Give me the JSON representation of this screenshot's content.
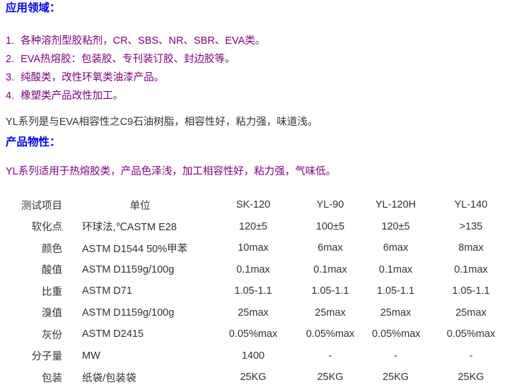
{
  "colors": {
    "heading_blue": "#0000ee",
    "list_purple": "#80007f",
    "body_text": "#333333",
    "background": "#ffffff"
  },
  "application": {
    "heading": "应用领域：",
    "items": [
      {
        "no": "1.",
        "text": "各种溶剂型胶粘剂，CR、SBS、NR、SBR、EVA类。"
      },
      {
        "no": "2.",
        "text": "EVA热熔胶：包装胶、专刊装订胶、封边胶等。"
      },
      {
        "no": "3.",
        "text": "纯酸类，改性环氧类油漆产品。"
      },
      {
        "no": "4.",
        "text": "橡塑类产品改性加工。"
      }
    ],
    "summary": "YL系列是与EVA相容性之C9石油树脂，相容性好，粘力强，味道浅。"
  },
  "properties": {
    "heading": "产品物性：",
    "summary": "YL系列适用于热熔胶类，产品色泽浅，加工相容性好，粘力强，气味低。"
  },
  "spec_table": {
    "headers": [
      "测试项目",
      "单位",
      "SK-120",
      "YL-90",
      "YL-120H",
      "YL-140"
    ],
    "rows": [
      [
        "软化点",
        "环球法,℃ASTM E28",
        "120±5",
        "100±5",
        "120±5",
        ">135"
      ],
      [
        "颜色",
        "ASTM D1544 50%甲苯",
        "10max",
        "6max",
        "6max",
        "8max"
      ],
      [
        "酸值",
        "ASTM D1159g/100g",
        "0.1max",
        "0.1max",
        "0.1max",
        "0.1max"
      ],
      [
        "比重",
        "ASTM D71",
        "1.05-1.1",
        "1.05-1.1",
        "1.05-1.1",
        "1.05-1.1"
      ],
      [
        "溴值",
        "ASTM D1159g/100g",
        "25max",
        "25max",
        "25max",
        "25max"
      ],
      [
        "灰份",
        "ASTM D2415",
        "0.05%max",
        "0.05%max",
        "0.05%max",
        "0.05%max"
      ],
      [
        "分子量",
        "MW",
        "1400",
        "-",
        "-",
        "-"
      ],
      [
        "包装",
        "纸袋/包装袋",
        "25KG",
        "25KG",
        "25KG",
        "25KG"
      ]
    ]
  }
}
